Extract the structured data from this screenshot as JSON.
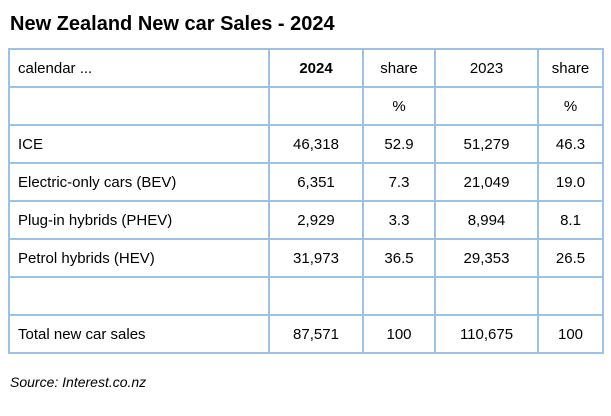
{
  "title": "New Zealand New car Sales - 2024",
  "source": "Source: Interest.co.nz",
  "colors": {
    "table_border": "#9CC2E5",
    "text": "#000000",
    "background": "#FFFFFF"
  },
  "chart_data": {
    "type": "table",
    "title": "New Zealand New car Sales - 2024",
    "columns": [
      "calendar ...",
      "2024",
      "share",
      "2023",
      "share"
    ],
    "unit_row": [
      "",
      "",
      "%",
      "",
      "%"
    ],
    "rows": [
      [
        "ICE",
        "46,318",
        "52.9",
        "51,279",
        "46.3"
      ],
      [
        "Electric-only cars (BEV)",
        "6,351",
        "7.3",
        "21,049",
        "19.0"
      ],
      [
        "Plug-in hybrids (PHEV)",
        "2,929",
        "3.3",
        "8,994",
        "8.1"
      ],
      [
        "Petrol hybrids (HEV)",
        "31,973",
        "36.5",
        "29,353",
        "26.5"
      ],
      [
        "",
        "",
        "",
        "",
        ""
      ],
      [
        "Total new car sales",
        "87,571",
        "100",
        "110,675",
        "100"
      ]
    ],
    "notes": "Column '2024' header is bold; numeric cells centered; label column left-aligned",
    "source": "Source: Interest.co.nz"
  }
}
